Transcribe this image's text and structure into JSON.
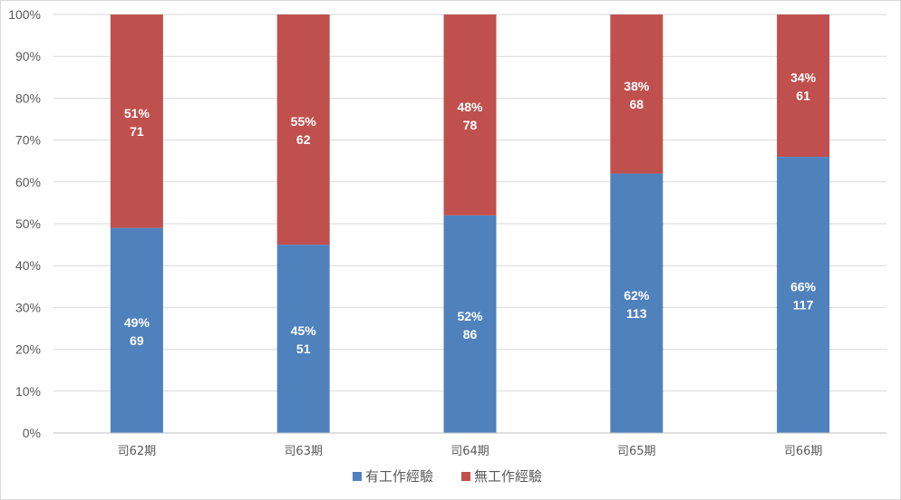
{
  "chart_data": {
    "type": "bar",
    "stacked": "percent",
    "categories": [
      "司62期",
      "司63期",
      "司64期",
      "司65期",
      "司66期"
    ],
    "series": [
      {
        "name": "有工作經驗",
        "color": "#4f81bd",
        "percent": [
          49,
          45,
          52,
          62,
          66
        ],
        "values": [
          69,
          51,
          86,
          113,
          117
        ],
        "percent_labels": [
          "49%",
          "45%",
          "52%",
          "62%",
          "66%"
        ],
        "count_labels": [
          "69",
          "51",
          "86",
          "113",
          "117"
        ]
      },
      {
        "name": "無工作經驗",
        "color": "#c0504d",
        "percent": [
          51,
          55,
          48,
          38,
          34
        ],
        "values": [
          71,
          62,
          78,
          68,
          61
        ],
        "percent_labels": [
          "51%",
          "55%",
          "48%",
          "38%",
          "34%"
        ],
        "count_labels": [
          "71",
          "62",
          "78",
          "68",
          "61"
        ]
      }
    ],
    "y_ticks": [
      "0%",
      "10%",
      "20%",
      "30%",
      "40%",
      "50%",
      "60%",
      "70%",
      "80%",
      "90%",
      "100%"
    ],
    "ylim": [
      0,
      100
    ],
    "grid": true,
    "legend_position": "bottom"
  }
}
